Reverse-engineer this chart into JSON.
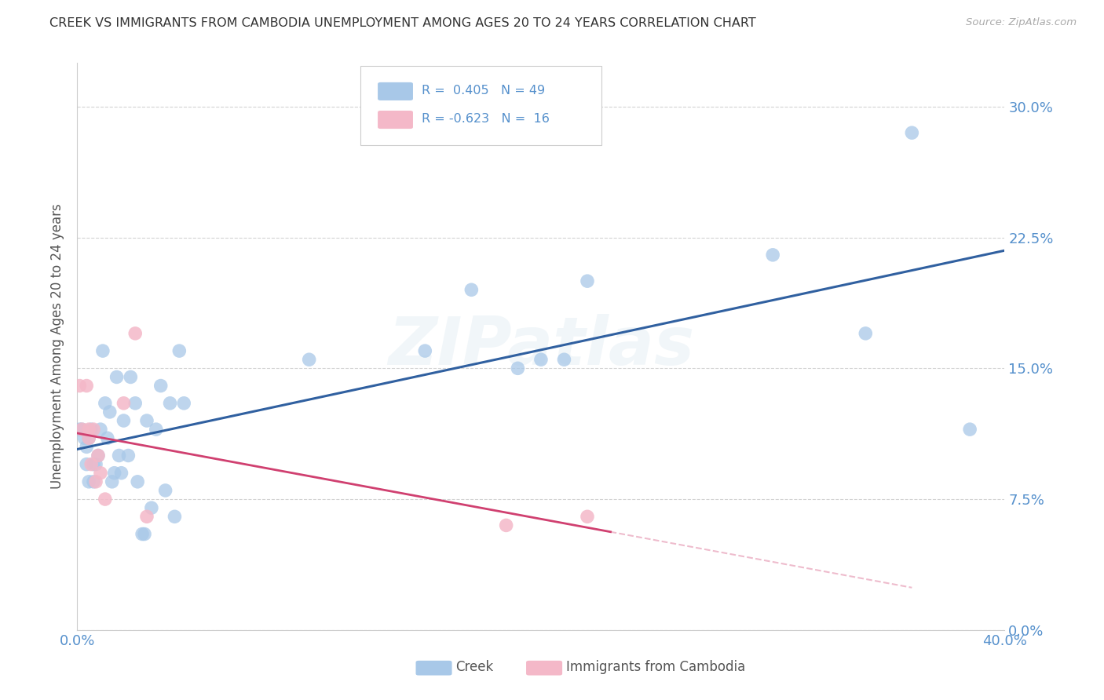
{
  "title": "CREEK VS IMMIGRANTS FROM CAMBODIA UNEMPLOYMENT AMONG AGES 20 TO 24 YEARS CORRELATION CHART",
  "source": "Source: ZipAtlas.com",
  "ylabel": "Unemployment Among Ages 20 to 24 years",
  "xmin": 0.0,
  "xmax": 0.4,
  "ymin": 0.0,
  "ymax": 0.325,
  "yticks": [
    0.0,
    0.075,
    0.15,
    0.225,
    0.3
  ],
  "ytick_labels": [
    "0.0%",
    "7.5%",
    "15.0%",
    "22.5%",
    "30.0%"
  ],
  "xticks": [
    0.0,
    0.05,
    0.1,
    0.15,
    0.2,
    0.25,
    0.3,
    0.35,
    0.4
  ],
  "xtick_labels_show": [
    "0.0%",
    "",
    "",
    "",
    "",
    "",
    "",
    "",
    "40.0%"
  ],
  "creek_color": "#a8c8e8",
  "cambodia_color": "#f4b8c8",
  "trendline_creek_color": "#3060a0",
  "trendline_cambodia_color": "#d04070",
  "watermark": "ZIPatlas",
  "R_creek": "0.405",
  "N_creek": "49",
  "R_cambodia": "-0.623",
  "N_cambodia": "16",
  "creek_x": [
    0.001,
    0.002,
    0.003,
    0.004,
    0.004,
    0.005,
    0.005,
    0.006,
    0.007,
    0.007,
    0.008,
    0.009,
    0.01,
    0.011,
    0.012,
    0.013,
    0.014,
    0.015,
    0.016,
    0.017,
    0.018,
    0.019,
    0.02,
    0.022,
    0.023,
    0.025,
    0.026,
    0.028,
    0.029,
    0.03,
    0.032,
    0.034,
    0.036,
    0.038,
    0.04,
    0.042,
    0.044,
    0.046,
    0.1,
    0.15,
    0.17,
    0.19,
    0.2,
    0.21,
    0.22,
    0.3,
    0.34,
    0.36,
    0.385
  ],
  "creek_y": [
    0.115,
    0.115,
    0.11,
    0.105,
    0.095,
    0.11,
    0.085,
    0.115,
    0.095,
    0.085,
    0.095,
    0.1,
    0.115,
    0.16,
    0.13,
    0.11,
    0.125,
    0.085,
    0.09,
    0.145,
    0.1,
    0.09,
    0.12,
    0.1,
    0.145,
    0.13,
    0.085,
    0.055,
    0.055,
    0.12,
    0.07,
    0.115,
    0.14,
    0.08,
    0.13,
    0.065,
    0.16,
    0.13,
    0.155,
    0.16,
    0.195,
    0.15,
    0.155,
    0.155,
    0.2,
    0.215,
    0.17,
    0.285,
    0.115
  ],
  "cambodia_x": [
    0.001,
    0.002,
    0.004,
    0.005,
    0.005,
    0.006,
    0.007,
    0.008,
    0.009,
    0.01,
    0.012,
    0.02,
    0.025,
    0.03,
    0.185,
    0.22
  ],
  "cambodia_y": [
    0.14,
    0.115,
    0.14,
    0.11,
    0.115,
    0.095,
    0.115,
    0.085,
    0.1,
    0.09,
    0.075,
    0.13,
    0.17,
    0.065,
    0.06,
    0.065
  ]
}
